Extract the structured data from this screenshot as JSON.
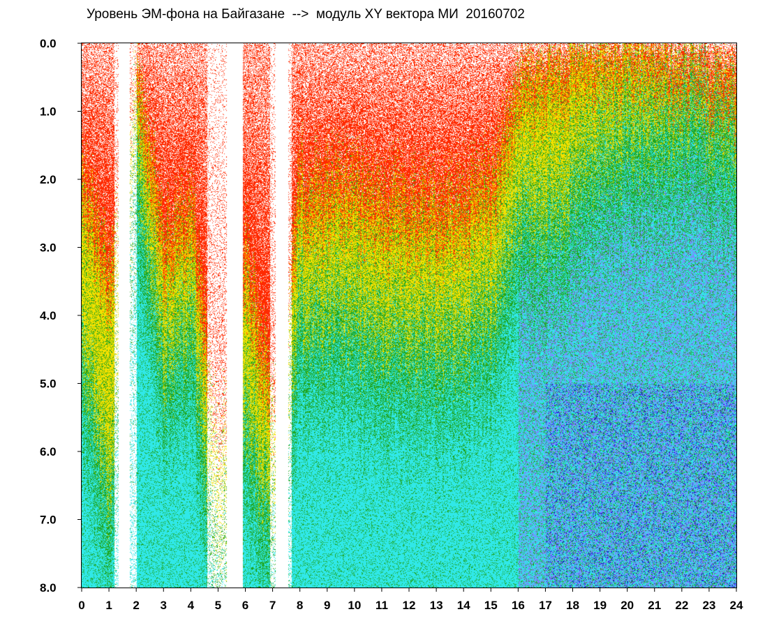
{
  "title": "Уровень ЭМ-фона на Байгазане  -->  модуль XY вектора МИ  20160702",
  "chart_data": {
    "type": "heatmap",
    "title": "Уровень ЭМ-фона на Байгазане  -->  модуль XY вектора МИ  20160702",
    "xlabel": "",
    "ylabel": "",
    "xlim": [
      0,
      24
    ],
    "ylim": [
      0.0,
      8.0
    ],
    "y_inverted": true,
    "x_ticks": [
      "0",
      "1",
      "2",
      "3",
      "4",
      "5",
      "6",
      "7",
      "8",
      "9",
      "10",
      "11",
      "12",
      "13",
      "14",
      "15",
      "16",
      "17",
      "18",
      "19",
      "20",
      "21",
      "22",
      "23",
      "24"
    ],
    "y_ticks": [
      "0.0",
      "1.0",
      "2.0",
      "3.0",
      "4.0",
      "5.0",
      "6.0",
      "7.0",
      "8.0"
    ],
    "color_scale": [
      "#ff2a00",
      "#f2e000",
      "#1fa51f",
      "#30e8e8",
      "#8080ff",
      "#1010d0"
    ],
    "gaps_hours": [
      [
        1.35,
        1.75
      ],
      [
        5.3,
        5.9
      ],
      [
        7.1,
        7.55
      ]
    ],
    "sparse_hours": [
      [
        1.2,
        2.0
      ],
      [
        4.6,
        5.4
      ],
      [
        6.9,
        7.7
      ]
    ],
    "column_profile": [
      {
        "hour": 0,
        "red_to": 2.0,
        "yellow_to": 4.2
      },
      {
        "hour": 1,
        "red_to": 3.5,
        "yellow_to": 6.5
      },
      {
        "hour": 2,
        "red_to": 0.4,
        "yellow_to": 1.6
      },
      {
        "hour": 3,
        "red_to": 3.0,
        "yellow_to": 4.5
      },
      {
        "hour": 4,
        "red_to": 2.6,
        "yellow_to": 4.0
      },
      {
        "hour": 5,
        "red_to": 6.0,
        "yellow_to": 7.6
      },
      {
        "hour": 6,
        "red_to": 3.2,
        "yellow_to": 5.2
      },
      {
        "hour": 7,
        "red_to": 5.5,
        "yellow_to": 7.0
      },
      {
        "hour": 8,
        "red_to": 2.2,
        "yellow_to": 3.8
      },
      {
        "hour": 9,
        "red_to": 2.3,
        "yellow_to": 3.9
      },
      {
        "hour": 10,
        "red_to": 2.3,
        "yellow_to": 4.0
      },
      {
        "hour": 11,
        "red_to": 2.4,
        "yellow_to": 4.1
      },
      {
        "hour": 12,
        "red_to": 2.5,
        "yellow_to": 4.2
      },
      {
        "hour": 13,
        "red_to": 2.6,
        "yellow_to": 4.3
      },
      {
        "hour": 14,
        "red_to": 2.4,
        "yellow_to": 4.1
      },
      {
        "hour": 15,
        "red_to": 2.1,
        "yellow_to": 3.8
      },
      {
        "hour": 16,
        "red_to": 0.6,
        "yellow_to": 2.3
      },
      {
        "hour": 17,
        "red_to": 0.4,
        "yellow_to": 2.4
      },
      {
        "hour": 18,
        "red_to": 0.3,
        "yellow_to": 2.0
      },
      {
        "hour": 19,
        "red_to": 0.2,
        "yellow_to": 1.5
      },
      {
        "hour": 20,
        "red_to": 0.2,
        "yellow_to": 1.3
      },
      {
        "hour": 21,
        "red_to": 0.2,
        "yellow_to": 1.2
      },
      {
        "hour": 22,
        "red_to": 0.3,
        "yellow_to": 1.0
      },
      {
        "hour": 23,
        "red_to": 0.4,
        "yellow_to": 1.0
      },
      {
        "hour": 24,
        "red_to": 0.5,
        "yellow_to": 1.2
      }
    ]
  }
}
